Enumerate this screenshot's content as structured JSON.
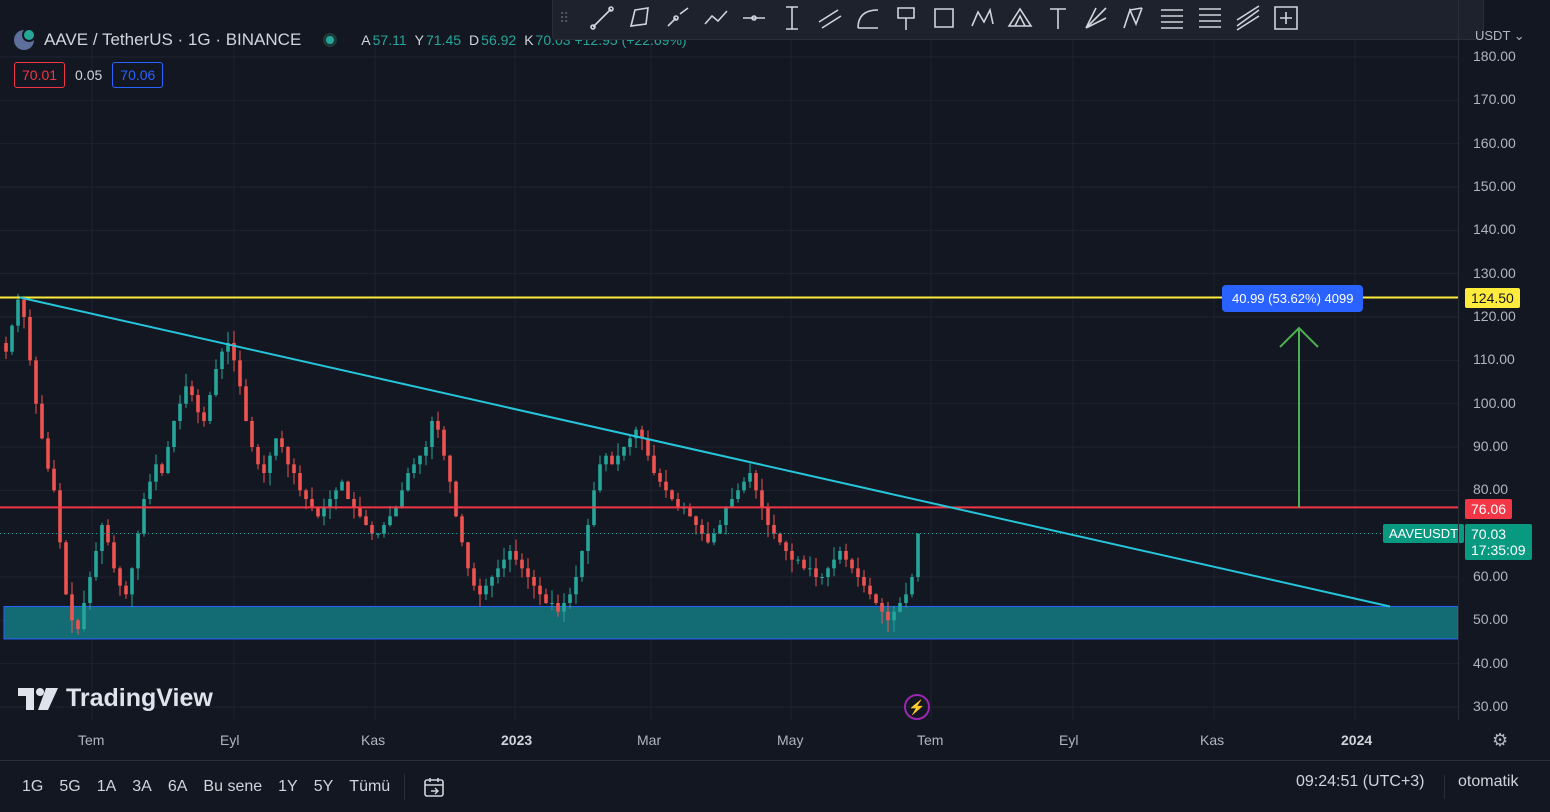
{
  "header": {
    "symbol_title": "AAVE / TetherUS · 1G · BINANCE",
    "ohlc": [
      {
        "k": "A",
        "v": "57.11"
      },
      {
        "k": "Y",
        "v": "71.45"
      },
      {
        "k": "D",
        "v": "56.92"
      },
      {
        "k": "K",
        "v": "70.03 +12.95 (+22.69%)"
      }
    ],
    "sell_price": "70.01",
    "spread": "0.05",
    "buy_price": "70.06"
  },
  "toolbar": {
    "tools": [
      "trend-line-icon",
      "path-icon",
      "ray-icon",
      "polyline-icon",
      "horizontal-ray-icon",
      "vertical-line-icon",
      "parallel-channel-icon",
      "arc-icon",
      "flag-icon",
      "rectangle-icon",
      "xabcd-icon",
      "triangle-pattern-icon",
      "text-icon",
      "fib-fan-icon",
      "pattern-icon",
      "fib-retracement-icon",
      "fib-extension-icon",
      "regression-icon",
      "measure-icon"
    ]
  },
  "price_axis": {
    "unit": "USDT",
    "labels": [
      "180.00",
      "170.00",
      "160.00",
      "150.00",
      "140.00",
      "130.00",
      "120.00",
      "110.00",
      "100.00",
      "90.00",
      "80.00",
      "60.00",
      "50.00",
      "40.00",
      "30.00"
    ],
    "tag_resistance": "124.50",
    "tag_support": "76.06",
    "tag_last": "70.03",
    "tag_countdown": "17:35:09",
    "symbol_tag": "AAVEUSDT"
  },
  "measure": {
    "label": "40.99 (53.62%) 4099"
  },
  "time_axis": {
    "labels": [
      {
        "text": "Tem",
        "bold": false
      },
      {
        "text": "Eyl",
        "bold": false
      },
      {
        "text": "Kas",
        "bold": false
      },
      {
        "text": "2023",
        "bold": true
      },
      {
        "text": "Mar",
        "bold": false
      },
      {
        "text": "May",
        "bold": false
      },
      {
        "text": "Tem",
        "bold": false
      },
      {
        "text": "Eyl",
        "bold": false
      },
      {
        "text": "Kas",
        "bold": false
      },
      {
        "text": "2024",
        "bold": true
      }
    ]
  },
  "bottom_bar": {
    "ranges": [
      "1G",
      "5G",
      "1A",
      "3A",
      "6A",
      "Bu sene",
      "1Y",
      "5Y",
      "Tümü"
    ],
    "clock": "09:24:51 (UTC+3)",
    "scale_mode": "otomatik"
  },
  "branding": {
    "logo_text": "TradingView"
  },
  "colors": {
    "background": "#131722",
    "up": "#26a69a",
    "down": "#ef5350",
    "resistance": "#ffeb3b",
    "support": "#f23645",
    "trendline": "#26c6da",
    "zone": "#136b73",
    "measure_arrow": "#4caf50",
    "measure_label": "#2962ff"
  },
  "chart_data": {
    "type": "candlestick",
    "interval": "1D",
    "y_range": [
      30,
      180
    ],
    "horizontal_levels": [
      {
        "price": 124.5,
        "color": "yellow"
      },
      {
        "price": 76.06,
        "color": "red"
      }
    ],
    "support_zone": [
      45.7,
      53.2
    ],
    "trendline": {
      "from_price": 124.5,
      "to_price": 53.2
    },
    "last_price": 70.03,
    "candles_close_series": [
      112,
      118,
      124,
      120,
      110,
      100,
      92,
      85,
      80,
      68,
      56,
      50,
      48,
      54,
      60,
      66,
      72,
      68,
      62,
      58,
      56,
      62,
      70,
      78,
      82,
      86,
      84,
      90,
      96,
      100,
      104,
      102,
      98,
      96,
      102,
      108,
      112,
      114,
      110,
      104,
      96,
      90,
      86,
      84,
      88,
      92,
      90,
      86,
      84,
      80,
      78,
      76,
      74,
      76,
      78,
      80,
      82,
      78,
      76,
      74,
      72,
      70,
      70,
      72,
      74,
      76,
      80,
      84,
      86,
      88,
      90,
      96,
      94,
      88,
      82,
      74,
      68,
      62,
      58,
      56,
      58,
      60,
      62,
      64,
      66,
      64,
      62,
      60,
      58,
      56,
      54,
      54,
      52,
      54,
      56,
      60,
      66,
      72,
      80,
      86,
      88,
      86,
      88,
      90,
      92,
      94,
      92,
      88,
      84,
      82,
      80,
      78,
      76,
      76,
      74,
      72,
      70,
      68,
      70,
      72,
      76,
      78,
      80,
      82,
      84,
      80,
      76,
      72,
      70,
      68,
      66,
      64,
      64,
      62,
      62,
      60,
      60,
      62,
      64,
      66,
      64,
      62,
      60,
      58,
      56,
      54,
      52,
      50,
      52,
      54,
      56,
      60,
      70
    ]
  }
}
